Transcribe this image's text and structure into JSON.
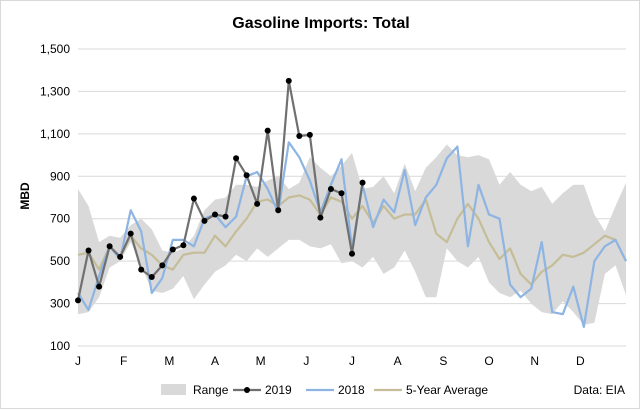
{
  "chart_data": {
    "type": "line",
    "title": "Gasoline Imports: Total",
    "ylabel": "MBD",
    "xlabel": "",
    "source": "Data: EIA",
    "ylim": [
      100,
      1500
    ],
    "yticks": [
      100,
      300,
      500,
      700,
      900,
      "1,100",
      "1,300",
      "1,500"
    ],
    "ytick_values": [
      100,
      300,
      500,
      700,
      900,
      1100,
      1300,
      1500
    ],
    "month_labels": [
      "J",
      "F",
      "M",
      "A",
      "M",
      "J",
      "J",
      "A",
      "S",
      "O",
      "N",
      "D"
    ],
    "grid": "horizontal",
    "legend_position": "bottom",
    "weeks": 53,
    "series": [
      {
        "name": "Range",
        "kind": "band",
        "color": "#d9d9d9",
        "low": [
          250,
          260,
          330,
          470,
          500,
          590,
          480,
          360,
          350,
          370,
          430,
          320,
          390,
          450,
          480,
          530,
          500,
          560,
          520,
          560,
          600,
          600,
          570,
          560,
          580,
          490,
          500,
          470,
          520,
          440,
          470,
          550,
          450,
          330,
          330,
          560,
          500,
          470,
          520,
          400,
          350,
          330,
          360,
          300,
          260,
          250,
          310,
          260,
          200,
          210,
          440,
          480,
          340
        ],
        "high": [
          840,
          760,
          590,
          620,
          610,
          670,
          700,
          650,
          550,
          540,
          560,
          620,
          740,
          790,
          800,
          860,
          860,
          850,
          880,
          900,
          840,
          870,
          990,
          940,
          900,
          950,
          1010,
          840,
          850,
          900,
          820,
          960,
          830,
          940,
          990,
          1050,
          1000,
          990,
          1000,
          980,
          860,
          920,
          860,
          830,
          850,
          770,
          820,
          860,
          860,
          720,
          640,
          760,
          870
        ]
      },
      {
        "name": "2019",
        "kind": "line-markers",
        "color": "#707070",
        "marker_color": "#000000",
        "values": [
          315,
          550,
          380,
          570,
          520,
          630,
          460,
          425,
          480,
          555,
          575,
          795,
          690,
          720,
          710,
          985,
          905,
          770,
          1115,
          740,
          1350,
          1090,
          1095,
          705,
          840,
          820,
          535,
          870
        ]
      },
      {
        "name": "2018",
        "kind": "line",
        "color": "#8db4e2",
        "values": [
          350,
          270,
          430,
          570,
          510,
          740,
          640,
          350,
          420,
          600,
          600,
          570,
          700,
          720,
          660,
          710,
          900,
          920,
          840,
          730,
          1060,
          990,
          880,
          730,
          860,
          980,
          560,
          860,
          660,
          790,
          730,
          930,
          670,
          800,
          860,
          985,
          1040,
          570,
          860,
          720,
          700,
          390,
          330,
          370,
          590,
          260,
          250,
          380,
          190,
          500,
          570,
          600,
          500
        ]
      },
      {
        "name": "5-Year Average",
        "kind": "line",
        "color": "#c4bd97",
        "values": [
          530,
          540,
          460,
          570,
          520,
          620,
          560,
          530,
          480,
          460,
          530,
          540,
          540,
          620,
          570,
          640,
          700,
          780,
          790,
          760,
          800,
          810,
          790,
          720,
          800,
          780,
          700,
          760,
          680,
          760,
          700,
          720,
          720,
          790,
          630,
          590,
          700,
          770,
          700,
          590,
          510,
          560,
          440,
          390,
          450,
          480,
          530,
          520,
          540,
          580,
          620,
          600,
          500
        ]
      }
    ]
  }
}
